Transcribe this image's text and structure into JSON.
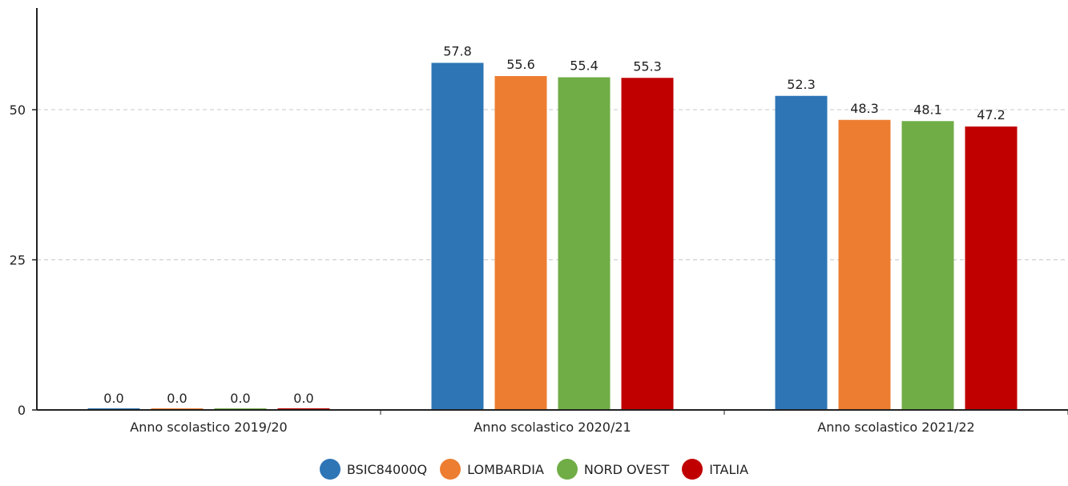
{
  "chart_data": {
    "type": "bar",
    "title": "",
    "xlabel": "",
    "ylabel": "",
    "categories": [
      "Anno scolastico 2019/20",
      "Anno scolastico 2020/21",
      "Anno scolastico 2021/22"
    ],
    "series": [
      {
        "name": "BSIC84000Q",
        "color": "#2e75b6",
        "values": [
          0.0,
          57.8,
          52.3
        ],
        "labels": [
          "0.0",
          "57.8",
          "52.3"
        ]
      },
      {
        "name": "LOMBARDIA",
        "color": "#ed7d31",
        "values": [
          0.0,
          55.6,
          48.3
        ],
        "labels": [
          "0.0",
          "55.6",
          "48.3"
        ]
      },
      {
        "name": "NORD OVEST",
        "color": "#70ad47",
        "values": [
          0.0,
          55.4,
          48.1
        ],
        "labels": [
          "0.0",
          "55.4",
          "48.1"
        ]
      },
      {
        "name": "ITALIA",
        "color": "#c00000",
        "values": [
          0.0,
          55.3,
          47.2
        ],
        "labels": [
          "0.0",
          "55.3",
          "47.2"
        ]
      }
    ],
    "ylim": [
      0,
      66
    ],
    "yticks": [
      0,
      25,
      50
    ],
    "ytick_labels": [
      "0",
      "25",
      "50"
    ],
    "grid": true,
    "legend_position": "bottom-center"
  }
}
